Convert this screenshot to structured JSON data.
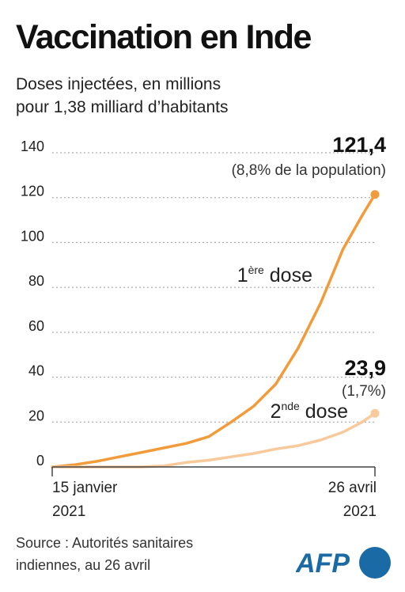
{
  "header": {
    "title": "Vaccination en Inde",
    "subtitle_line1": "Doses injectées, en millions",
    "subtitle_line2": "pour 1,38 milliard d’habitants"
  },
  "footer": {
    "source_line1": "Source : Autorités sanitaires",
    "source_line2": "indiennes, au 26 avril",
    "logo_text": "AFP"
  },
  "colors": {
    "first_dose": "#f29b3a",
    "second_dose": "#f8c99b",
    "grid": "#9a9a9a",
    "axis": "#444444",
    "logo_blue": "#1a6aa6"
  },
  "chart_data": {
    "type": "line",
    "ylim": [
      0,
      140
    ],
    "yticks": [
      0,
      20,
      40,
      60,
      80,
      100,
      120,
      140
    ],
    "xrange": [
      "2021-01-15",
      "2021-04-26"
    ],
    "x_labels": [
      {
        "line1": "15 janvier",
        "line2": "2021"
      },
      {
        "line1": "26 avril",
        "line2": "2021"
      }
    ],
    "series": [
      {
        "name_main": "1",
        "name_sup": "ère",
        "name_rest": " dose",
        "color": "#f29b3a",
        "points": [
          [
            "2021-01-15",
            0
          ],
          [
            "2021-01-22",
            1.0
          ],
          [
            "2021-01-29",
            2.5
          ],
          [
            "2021-02-05",
            4.5
          ],
          [
            "2021-02-12",
            6.5
          ],
          [
            "2021-02-19",
            8.5
          ],
          [
            "2021-02-26",
            10.5
          ],
          [
            "2021-03-05",
            13.5
          ],
          [
            "2021-03-12",
            20
          ],
          [
            "2021-03-19",
            27
          ],
          [
            "2021-03-26",
            37
          ],
          [
            "2021-04-02",
            53
          ],
          [
            "2021-04-09",
            73
          ],
          [
            "2021-04-16",
            97
          ],
          [
            "2021-04-22",
            112
          ],
          [
            "2021-04-26",
            121.4
          ]
        ],
        "end_value_label": "121,4",
        "end_note": "(8,8% de la population)"
      },
      {
        "name_main": "2",
        "name_sup": "nde",
        "name_rest": " dose",
        "color": "#f8c99b",
        "points": [
          [
            "2021-01-15",
            0
          ],
          [
            "2021-02-12",
            0
          ],
          [
            "2021-02-19",
            0.5
          ],
          [
            "2021-02-26",
            2
          ],
          [
            "2021-03-05",
            3
          ],
          [
            "2021-03-12",
            4.5
          ],
          [
            "2021-03-19",
            6
          ],
          [
            "2021-03-26",
            8
          ],
          [
            "2021-04-02",
            9.5
          ],
          [
            "2021-04-09",
            12
          ],
          [
            "2021-04-16",
            15.5
          ],
          [
            "2021-04-22",
            20
          ],
          [
            "2021-04-26",
            23.9
          ]
        ],
        "end_value_label": "23,9",
        "end_note": "(1,7%)"
      }
    ]
  }
}
